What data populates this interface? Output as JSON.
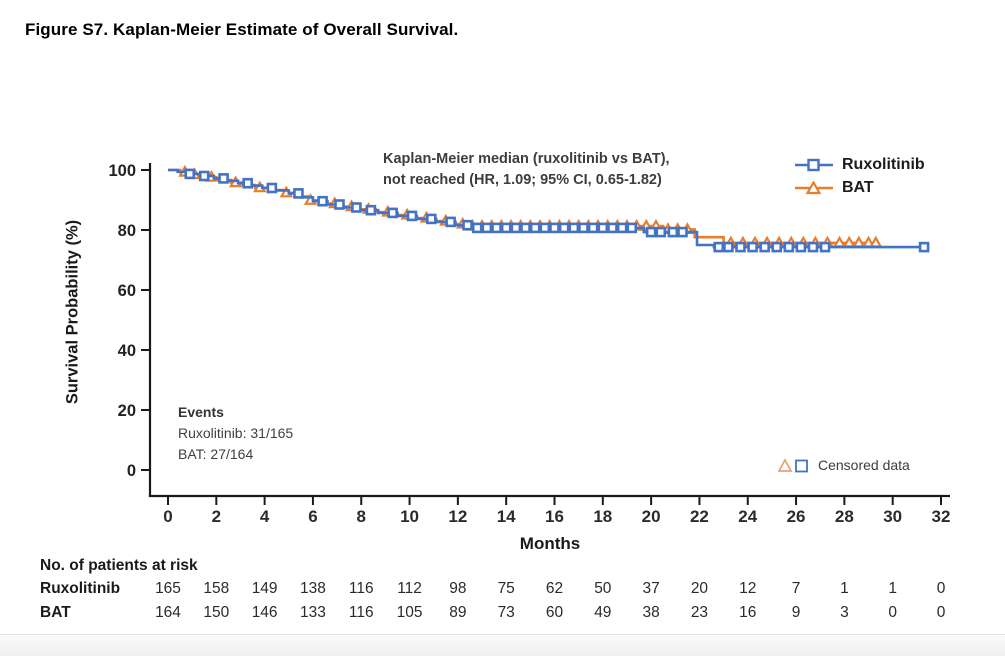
{
  "page": {
    "title": "Figure S7. Kaplan-Meier Estimate of Overall Survival."
  },
  "chart_data": {
    "type": "line",
    "subtype": "kaplan-meier-step",
    "xlabel": "Months",
    "ylabel": "Survival Probability (%)",
    "xlim": [
      0,
      32
    ],
    "ylim": [
      0,
      100
    ],
    "x_ticks": [
      0,
      2,
      4,
      6,
      8,
      10,
      12,
      14,
      16,
      18,
      20,
      22,
      24,
      26,
      28,
      30,
      32
    ],
    "y_ticks": [
      0,
      20,
      40,
      60,
      80,
      100
    ],
    "grid": false,
    "legend_position": "top-right",
    "annotation": {
      "line1": "Kaplan-Meier median (ruxolitinib vs BAT),",
      "line2": "not reached (HR, 1.09; 95% CI, 0.65-1.82)"
    },
    "events": {
      "heading": "Events",
      "line1": "Ruxolitinib: 31/165",
      "line2": "BAT: 27/164"
    },
    "censored_label": "Censored data",
    "colors": {
      "ruxolitinib": "#4472C4",
      "bat": "#E87E2D",
      "axis": "#1a1a1a"
    },
    "series": [
      {
        "name": "BAT",
        "color": "#E87E2D",
        "marker": "triangle",
        "steps": [
          [
            0,
            100
          ],
          [
            0.5,
            99.3
          ],
          [
            1.0,
            98.5
          ],
          [
            1.5,
            97.6
          ],
          [
            2.0,
            96.7
          ],
          [
            2.6,
            95.8
          ],
          [
            3.1,
            95.0
          ],
          [
            3.6,
            94.1
          ],
          [
            4.2,
            93.3
          ],
          [
            4.8,
            92.4
          ],
          [
            5.3,
            91.2
          ],
          [
            5.9,
            89.9
          ],
          [
            6.5,
            88.8
          ],
          [
            7.1,
            87.8
          ],
          [
            7.8,
            86.9
          ],
          [
            8.6,
            86.0
          ],
          [
            9.4,
            85.0
          ],
          [
            10.2,
            84.0
          ],
          [
            11.0,
            83.0
          ],
          [
            11.8,
            82.0
          ],
          [
            12.5,
            81.3
          ],
          [
            20.5,
            80.2
          ],
          [
            21.8,
            77.6
          ],
          [
            23.0,
            75.7
          ],
          [
            29.3,
            75.7
          ]
        ],
        "censor_times": [
          0.7,
          1.1,
          1.8,
          2.8,
          3.8,
          4.9,
          5.9,
          6.9,
          7.6,
          8.3,
          9.1,
          9.9,
          10.7,
          11.5,
          12.2,
          12.6,
          13.0,
          13.4,
          13.8,
          14.2,
          14.6,
          15.0,
          15.4,
          15.8,
          16.2,
          16.6,
          17.0,
          17.4,
          17.8,
          18.2,
          18.6,
          19.0,
          19.4,
          19.8,
          20.2,
          20.7,
          21.1,
          21.5,
          23.3,
          23.8,
          24.3,
          24.8,
          25.3,
          25.8,
          26.3,
          26.8,
          27.3,
          27.8,
          28.2,
          28.6,
          29.0,
          29.3
        ]
      },
      {
        "name": "Ruxolitinib",
        "color": "#4472C4",
        "marker": "square",
        "steps": [
          [
            0,
            100
          ],
          [
            0.4,
            99.4
          ],
          [
            0.9,
            98.7
          ],
          [
            1.4,
            98.0
          ],
          [
            1.9,
            97.2
          ],
          [
            2.4,
            96.4
          ],
          [
            2.9,
            95.6
          ],
          [
            3.4,
            94.8
          ],
          [
            3.9,
            94.0
          ],
          [
            4.4,
            93.2
          ],
          [
            5.0,
            92.2
          ],
          [
            5.5,
            90.9
          ],
          [
            6.0,
            89.6
          ],
          [
            6.6,
            88.5
          ],
          [
            7.2,
            87.5
          ],
          [
            7.9,
            86.6
          ],
          [
            8.7,
            85.7
          ],
          [
            9.5,
            84.7
          ],
          [
            10.3,
            83.7
          ],
          [
            11.1,
            82.7
          ],
          [
            11.9,
            81.6
          ],
          [
            12.6,
            80.7
          ],
          [
            19.7,
            79.3
          ],
          [
            21.9,
            75.0
          ],
          [
            22.6,
            74.3
          ],
          [
            31.3,
            74.3
          ]
        ],
        "censor_times": [
          0.9,
          1.5,
          2.3,
          3.3,
          4.3,
          5.4,
          6.4,
          7.1,
          7.8,
          8.4,
          9.3,
          10.1,
          10.9,
          11.7,
          12.4,
          12.8,
          13.2,
          13.6,
          14.0,
          14.4,
          14.8,
          15.2,
          15.6,
          16.0,
          16.4,
          16.8,
          17.2,
          17.6,
          18.0,
          18.4,
          18.8,
          19.2,
          20.0,
          20.4,
          20.9,
          21.3,
          22.8,
          23.2,
          23.7,
          24.2,
          24.7,
          25.2,
          25.7,
          26.2,
          26.7,
          27.2,
          31.3
        ]
      }
    ],
    "risk_table": {
      "heading": "No. of patients at risk",
      "months": [
        0,
        2,
        4,
        6,
        8,
        10,
        12,
        14,
        16,
        18,
        20,
        22,
        24,
        26,
        28,
        30,
        32
      ],
      "rows": [
        {
          "label": "Ruxolitinib",
          "values": [
            165,
            158,
            149,
            138,
            116,
            112,
            98,
            75,
            62,
            50,
            37,
            20,
            12,
            7,
            1,
            1,
            0
          ]
        },
        {
          "label": "BAT",
          "values": [
            164,
            150,
            146,
            133,
            116,
            105,
            89,
            73,
            60,
            49,
            38,
            23,
            16,
            9,
            3,
            0,
            0
          ]
        }
      ]
    }
  }
}
